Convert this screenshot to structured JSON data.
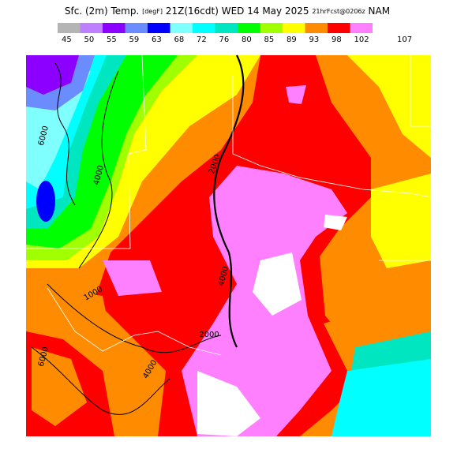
{
  "header": {
    "parts": [
      "Sfc. (2m) Temp.",
      "[degF]",
      "21Z(16cdt)",
      "WED 14 May 2025",
      "21hrFcst@0206z",
      "NAM"
    ]
  },
  "legend": {
    "levels": [
      45,
      50,
      55,
      59,
      63,
      68,
      72,
      76,
      80,
      85,
      89,
      93,
      98,
      102,
      107
    ],
    "colors": [
      "#b4b4b4",
      "#bf80ff",
      "#8c00ff",
      "#6b8cff",
      "#0000ff",
      "#80ffff",
      "#00ffff",
      "#00e6c0",
      "#00ff00",
      "#a0ff00",
      "#ffff00",
      "#ff8c00",
      "#ff0000",
      "#ff80ff"
    ]
  },
  "map": {
    "contour_labels": [
      "6000",
      "4000",
      "2000",
      "4000",
      "1000",
      "2000",
      "6000",
      "4000"
    ]
  }
}
